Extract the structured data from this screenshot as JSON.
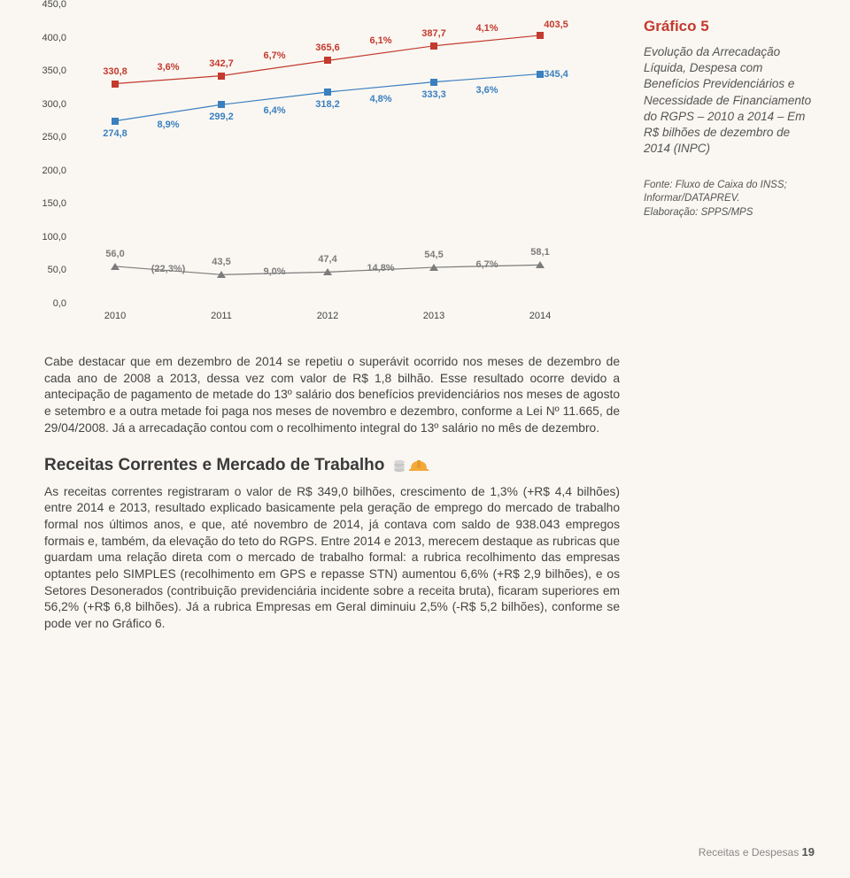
{
  "chart": {
    "type": "line",
    "ylim": [
      0,
      450
    ],
    "ytick_step": 50,
    "y_labels": [
      "0,0",
      "50,0",
      "100,0",
      "150,0",
      "200,0",
      "250,0",
      "300,0",
      "350,0",
      "400,0",
      "450,0"
    ],
    "x_categories": [
      "2010",
      "2011",
      "2012",
      "2013",
      "2014"
    ],
    "series": [
      {
        "color": "#c33a2e",
        "marker": "square",
        "values": [
          330.8,
          342.7,
          365.6,
          387.7,
          403.5
        ],
        "value_labels": [
          "330,8",
          "342,7",
          "365,6",
          "387,7",
          "403,5"
        ],
        "pct_labels": [
          "",
          "3,6%",
          "6,7%",
          "6,1%",
          "4,1%"
        ]
      },
      {
        "color": "#3a7fbf",
        "marker": "square",
        "values": [
          274.8,
          299.2,
          318.2,
          333.3,
          345.4
        ],
        "value_labels": [
          "274,8",
          "299,2",
          "318,2",
          "333,3",
          "345,4"
        ],
        "pct_labels": [
          "",
          "8,9%",
          "6,4%",
          "4,8%",
          "3,6%"
        ]
      },
      {
        "color": "#7c7c7c",
        "marker": "triangle",
        "values": [
          56.0,
          43.5,
          47.4,
          54.5,
          58.1
        ],
        "value_labels": [
          "56,0",
          "43,5",
          "47,4",
          "54,5",
          "58,1"
        ],
        "pct_labels": [
          "",
          "(22,3%)",
          "9,0%",
          "14,8%",
          "6,7%"
        ]
      }
    ],
    "label_fontsize": 11,
    "background_color": "#faf7f2"
  },
  "sidebar": {
    "title": "Gráfico 5",
    "title_color": "#c33a2e",
    "desc": "Evolução da Arrecadação Líquida, Despesa com Benefícios Previdenciários e Necessidade de Financiamento do RGPS – 2010 a 2014 – Em R$ bilhões de dezembro de 2014 (INPC)",
    "source1": "Fonte: Fluxo de Caixa do INSS; Informar/DATAPREV.",
    "source2": "Elaboração: SPPS/MPS"
  },
  "para1": "Cabe destacar que em dezembro de 2014 se repetiu o superávit ocorrido nos meses de dezembro de cada ano de 2008 a 2013, dessa vez com valor de R$ 1,8 bilhão. Esse resultado ocorre devido a antecipação de pagamento de metade do 13º salário dos benefícios previdenciários nos meses de agosto e setembro e a outra metade foi paga nos meses de novembro e dezembro, conforme a Lei Nº 11.665, de 29/04/2008. Já a arrecadação contou com o recolhimento integral do 13º salário no mês de dezembro.",
  "section_title": "Receitas Correntes e Mercado de Trabalho",
  "para2": "As receitas correntes registraram o valor de R$ 349,0 bilhões, crescimento de 1,3% (+R$ 4,4 bilhões) entre 2014 e 2013, resultado explicado basicamente pela geração de emprego do mercado de trabalho formal nos últimos anos, e que, até novembro de 2014, já contava com saldo de 938.043 empregos formais e, também, da elevação do teto do RGPS. Entre 2014 e 2013, merecem destaque as rubricas que guardam uma relação direta com o mercado de trabalho formal: a rubrica recolhimento das empresas optantes pelo SIMPLES (recolhimento em GPS e repasse STN) aumentou 6,6% (+R$ 2,9 bilhões), e os Setores Desonerados (contribuição previdenciária incidente sobre a receita bruta), ficaram superiores em 56,2% (+R$ 6,8 bilhões). Já a rubrica Empresas em Geral diminuiu 2,5% (-R$ 5,2 bilhões), conforme se pode ver no Gráfico 6.",
  "footer": {
    "label": "Receitas e Despesas",
    "page": "19"
  },
  "icons": {
    "coins_color": "#c8c8c8",
    "hardhat_color": "#f4a93a"
  }
}
